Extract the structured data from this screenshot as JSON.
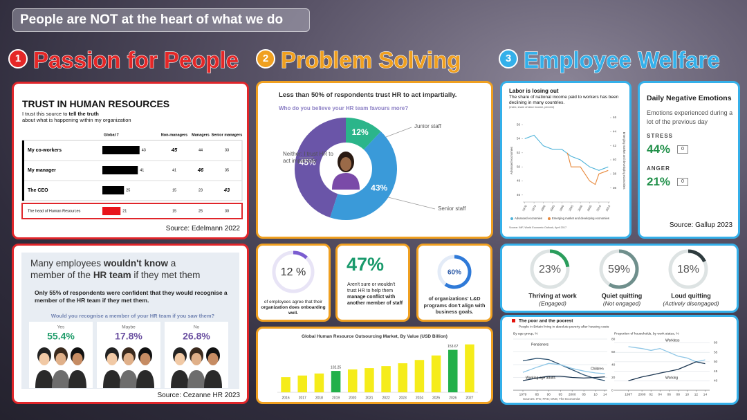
{
  "header": {
    "title": "People are NOT at the heart of what we do"
  },
  "sections": [
    {
      "number": "1",
      "title": "Passion for People",
      "color": "#e52727"
    },
    {
      "number": "2",
      "title": "Problem Solving",
      "color": "#f0a020"
    },
    {
      "number": "3",
      "title": "Employee Welfare",
      "color": "#34b0ea"
    }
  ],
  "trust": {
    "title": "TRUST IN HUMAN RESOURCES",
    "subtitle": {
      "pre": "I trust this source to",
      "bold": "tell the truth",
      "post": "about what is happening within my organization"
    },
    "columns": [
      "Global 7",
      "Non-managers",
      "Managers",
      "Senior managers"
    ],
    "rows": [
      {
        "label": "My co-workers",
        "values": [
          43,
          45,
          44,
          33
        ]
      },
      {
        "label": "My manager",
        "values": [
          41,
          41,
          46,
          35
        ]
      },
      {
        "label": "The CEO",
        "values": [
          25,
          15,
          23,
          43
        ]
      },
      {
        "label": "The head of Human Resources",
        "values": [
          21,
          15,
          25,
          30
        ]
      }
    ],
    "source": "Source: Edelmann 2022"
  },
  "hr_team": {
    "headline": {
      "pre": "Many employees",
      "bold": "wouldn't know",
      "post": "a"
    },
    "headline2": {
      "pre": "member of the",
      "bold": "HR team",
      "post": "if they met them"
    },
    "stat": "Only 55% of respondents were confident that they would recognise a member of the HR team if they met them.",
    "question": "Would you recognise a member of your HR team if you saw them?",
    "answers": [
      {
        "label": "Yes",
        "value": "55.4%",
        "color": "#1f9c6a"
      },
      {
        "label": "Maybe",
        "value": "17.8%",
        "color": "#6a4fa0"
      },
      {
        "label": "No",
        "value": "26.8%",
        "color": "#6a4fa0"
      }
    ],
    "source": "Source: Cezanne HR 2023"
  },
  "impartiality": {
    "type": "pie",
    "title": "Less than 50% of respondents trust HR to act impartially.",
    "question": "Who do you believe your HR team favours more?",
    "categories": [
      "Junior staff",
      "Senior staff",
      "Neither: I trust HR to act impartially"
    ],
    "values": [
      12,
      43,
      45
    ],
    "value_labels": [
      "12%",
      "43%",
      "45%"
    ],
    "colors": [
      "#2bb58a",
      "#3a9ad9",
      "#6a55a8"
    ]
  },
  "onboarding": {
    "value": 12,
    "value_label": "12 %",
    "text": "of employees agree that their",
    "bold": "organization does onboarding well.",
    "color": "#7a5cd0"
  },
  "conflict": {
    "value_label": "47%",
    "text": "Aren't sure or wouldn't trust HR to help them",
    "bold": "manage conflict with another member of staff"
  },
  "ld": {
    "value": 60,
    "value_label": "60%",
    "text": "of organizations' L&D programs don't align with business goals.",
    "color": "#2f7ad8"
  },
  "market": {
    "type": "bar",
    "title": "Global Human Resource Outsourcing Market, By Value (USD Billion)",
    "categories": [
      "2016",
      "2017",
      "2018",
      "2019",
      "2020",
      "2021",
      "2022",
      "2023",
      "2024",
      "2025",
      "2026",
      "2027"
    ],
    "values": [
      87,
      91,
      96,
      102.25,
      106,
      109,
      114,
      121,
      129,
      140,
      153.67,
      167
    ],
    "value_labels": [
      null,
      null,
      null,
      "102.25",
      null,
      null,
      null,
      null,
      null,
      null,
      "153.67",
      null
    ],
    "colors": [
      "#f5ec1a",
      "#f5ec1a",
      "#f5ec1a",
      "#22b04a",
      "#f5ec1a",
      "#f5ec1a",
      "#f5ec1a",
      "#f5ec1a",
      "#f5ec1a",
      "#f5ec1a",
      "#22b04a",
      "#f5ec1a"
    ],
    "ylim": [
      50,
      175
    ]
  },
  "labor": {
    "type": "line",
    "title": "Labor is losing out",
    "subtitle": "The share of national income paid to workers has been declining in many countries.",
    "note": "(Index, share of labor income, percent)",
    "xlim": [
      1969,
      2016
    ],
    "xticks": [
      1970,
      1975,
      1980,
      1985,
      1990,
      1995,
      2000,
      2005,
      2010,
      2015
    ],
    "ylim": [
      45,
      57
    ],
    "yticks": [
      46,
      48,
      50,
      52,
      54,
      56
    ],
    "y2lim": [
      34,
      46
    ],
    "y2ticks": [
      36,
      38,
      40,
      42,
      44,
      46
    ],
    "series": [
      {
        "name": "Advanced economies",
        "color": "#4fb3d9",
        "x": [
          1970,
          1975,
          1980,
          1985,
          1990,
          1995,
          2000,
          2005,
          2010,
          2015
        ],
        "values": [
          54,
          54.5,
          53,
          52.5,
          52.5,
          51.5,
          51,
          50,
          49.5,
          50
        ]
      },
      {
        "name": "Emerging market and developing economies",
        "color": "#e8883a",
        "axis": "y2",
        "x": [
          1993,
          1995,
          2000,
          2005,
          2008,
          2010,
          2015
        ],
        "values": [
          41,
          39,
          39,
          37,
          36.5,
          38,
          38.5
        ]
      }
    ],
    "source": "Source: IMF, World Economic Outlook, April 2017"
  },
  "emotions": {
    "title": "Daily Negative Emotions",
    "subtitle": "Emotions experienced during a lot of the previous day",
    "items": [
      {
        "name": "STRESS",
        "value_label": "44%",
        "change": "0"
      },
      {
        "name": "ANGER",
        "value_label": "21%",
        "change": "0"
      }
    ],
    "source": "Source: Gallup 2023"
  },
  "engagement": {
    "items": [
      {
        "value": 23,
        "value_label": "23%",
        "name": "Thriving at work",
        "note": "(Engaged)",
        "color": "#2a9d5c"
      },
      {
        "value": 59,
        "value_label": "59%",
        "name": "Quiet quitting",
        "note": "(Not engaged)",
        "color": "#6f8f8c"
      },
      {
        "value": 18,
        "value_label": "18%",
        "name": "Loud quitting",
        "note": "(Actively disengaged)",
        "color": "#2e3b3e"
      }
    ]
  },
  "poverty": {
    "title": "The poor and the poorest",
    "subtitle": "People in Britain living in absolute poverty after housing costs",
    "charts": [
      {
        "type": "line",
        "title": "By age group, %",
        "xlim": [
          1979,
          2015
        ],
        "xticks": [
          1979,
          {
            "value": 1985,
            "label": "85"
          },
          {
            "value": 1990,
            "label": "90"
          },
          {
            "value": 1995,
            "label": "95"
          },
          2000,
          {
            "value": 2005,
            "label": "05"
          },
          {
            "value": 2010,
            "label": "10"
          },
          {
            "value": 2014,
            "label": "14"
          }
        ],
        "ylim": [
          0,
          80
        ],
        "yticks": [
          0,
          20,
          40,
          60,
          80
        ],
        "x": [
          1979,
          1985,
          1990,
          1995,
          2000,
          2005,
          2010,
          2014
        ],
        "series": [
          {
            "name": "Pensioners",
            "color": "#2a4f6e",
            "values": [
              46,
              50,
              48,
              40,
              32,
              24,
              18,
              15
            ]
          },
          {
            "name": "Children",
            "color": "#8ec6e6",
            "values": [
              28,
              36,
              42,
              40,
              34,
              30,
              27,
              26
            ]
          },
          {
            "name": "Working-age adults",
            "color": "#1b3550",
            "values": [
              15,
              19,
              22,
              22,
              20,
              19,
              20,
              21
            ]
          }
        ]
      },
      {
        "type": "line",
        "title": "Proportion of households, by work status, %",
        "xlim": [
          1996,
          2015
        ],
        "xticks": [
          1997,
          2000,
          {
            "value": 2002,
            "label": "02"
          },
          {
            "value": 2004,
            "label": "04"
          },
          {
            "value": 2006,
            "label": "06"
          },
          {
            "value": 2008,
            "label": "08"
          },
          {
            "value": 2010,
            "label": "10"
          },
          {
            "value": 2012,
            "label": "12"
          },
          {
            "value": 2014,
            "label": "14"
          }
        ],
        "ylim": [
          35,
          62
        ],
        "yticks": [
          40,
          45,
          50,
          55,
          60
        ],
        "x": [
          1997,
          2000,
          2002,
          2004,
          2006,
          2008,
          2010,
          2012,
          2014
        ],
        "series": [
          {
            "name": "Workless",
            "color": "#8ec6e6",
            "values": [
              58,
              57,
              56,
              57,
              55,
              53,
              52,
              50,
              51
            ]
          },
          {
            "name": "Working",
            "color": "#1b3550",
            "values": [
              40,
              42,
              43,
              44,
              45,
              46,
              48,
              50,
              49
            ]
          }
        ]
      }
    ],
    "source": "Sources: IFS; FRS; ONS; The Economist"
  }
}
